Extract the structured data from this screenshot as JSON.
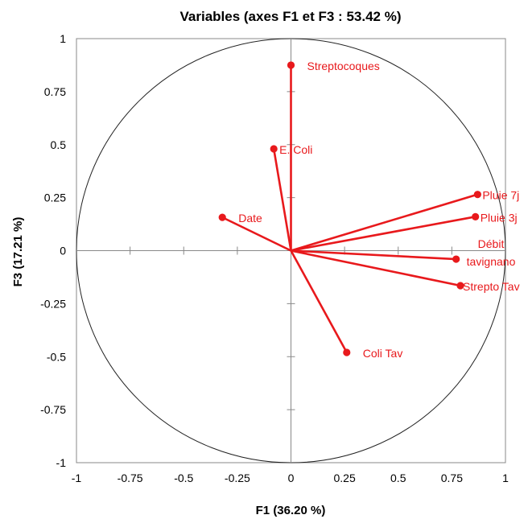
{
  "chart_data": {
    "type": "scatter",
    "title": "Variables (axes F1 et F3 : 53.42 %)",
    "xlabel": "F1 (36.20 %)",
    "ylabel": "F3 (17.21 %)",
    "xlim": [
      -1,
      1
    ],
    "ylim": [
      -1,
      1
    ],
    "x_ticks": [
      "-1",
      "-0.75",
      "-0.5",
      "-0.25",
      "0",
      "0.25",
      "0.5",
      "0.75",
      "1"
    ],
    "y_ticks": [
      "-1",
      "-0.75",
      "-0.5",
      "-0.25",
      "0",
      "0.25",
      "0.5",
      "0.75",
      "1"
    ],
    "unit_circle": true,
    "vector_color": "#e8191c",
    "points": [
      {
        "label": "Streptocoques",
        "x": 0.0,
        "y": 0.875
      },
      {
        "label": "E. Coli",
        "x": -0.08,
        "y": 0.48
      },
      {
        "label": "Date",
        "x": -0.32,
        "y": 0.157
      },
      {
        "label": "Pluie 7j",
        "x": 0.87,
        "y": 0.265
      },
      {
        "label": "Pluie 3j",
        "x": 0.86,
        "y": 0.16
      },
      {
        "label": "Débit tavignano",
        "x": 0.77,
        "y": -0.04
      },
      {
        "label": "Strepto Tav",
        "x": 0.79,
        "y": -0.165
      },
      {
        "label": "Coli Tav",
        "x": 0.26,
        "y": -0.48
      }
    ]
  }
}
